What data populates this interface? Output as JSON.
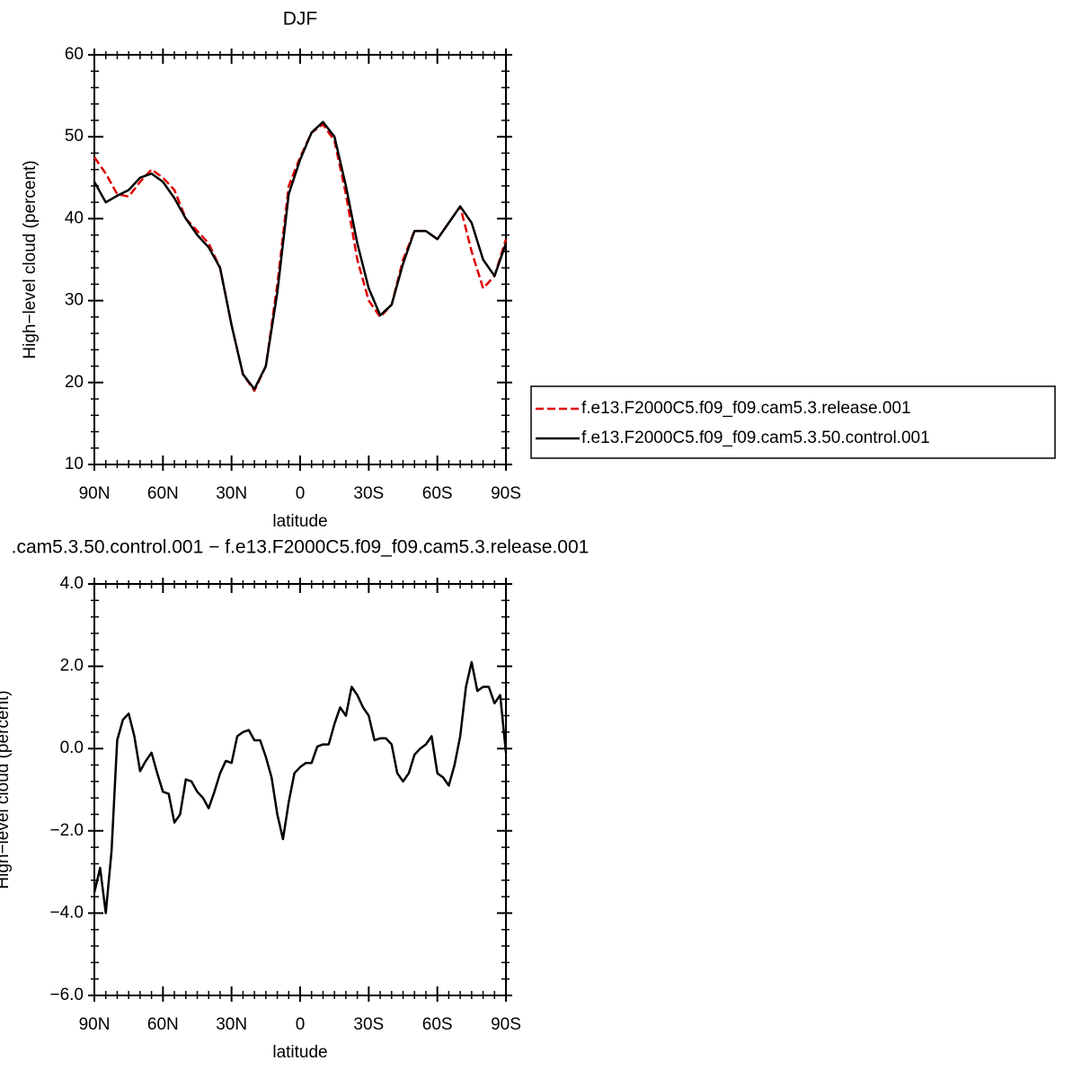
{
  "chart_data": [
    {
      "type": "line",
      "title": "DJF",
      "xlabel": "latitude",
      "ylabel": "High−level cloud (percent)",
      "xlim": [
        90,
        -90
      ],
      "xticks": [
        {
          "value": 90,
          "label": "90N"
        },
        {
          "value": 60,
          "label": "60N"
        },
        {
          "value": 30,
          "label": "30N"
        },
        0,
        {
          "value": -30,
          "label": "30S"
        },
        {
          "value": -60,
          "label": "60S"
        },
        {
          "value": -90,
          "label": "90S"
        }
      ],
      "ylim": [
        10,
        60
      ],
      "yticks": [
        10,
        20,
        30,
        40,
        50,
        60
      ],
      "legend": "right",
      "x": [
        90,
        85,
        80,
        75,
        70,
        65,
        60,
        55,
        50,
        45,
        40,
        35,
        30,
        25,
        20,
        15,
        10,
        5,
        0,
        -5,
        -10,
        -15,
        -20,
        -25,
        -30,
        -35,
        -40,
        -45,
        -50,
        -55,
        -60,
        -65,
        -70,
        -75,
        -80,
        -85,
        -90
      ],
      "series": [
        {
          "name": "f.e13.F2000C5.f09_f09.cam5.3.release.001",
          "color": "#e00000",
          "style": "dashed",
          "values": [
            47.5,
            45.5,
            43,
            42.7,
            44.5,
            46,
            45,
            43.5,
            40,
            38.5,
            37,
            34,
            27,
            21,
            19,
            22,
            32,
            44,
            47.5,
            50.5,
            51.5,
            49.5,
            43,
            35,
            30,
            28,
            29.5,
            35,
            38.5,
            38.5,
            37.5,
            39.5,
            41.5,
            36,
            31.5,
            33,
            37.5
          ]
        },
        {
          "name": "f.e13.F2000C5.f09_f09.cam5.3.50.control.001",
          "color": "#000000",
          "style": "solid",
          "values": [
            44.5,
            42,
            42.8,
            43.5,
            45,
            45.5,
            44.5,
            42.5,
            40,
            38,
            36.5,
            34,
            27,
            21,
            19.2,
            22,
            31,
            43,
            47.2,
            50.5,
            51.8,
            50,
            44,
            37,
            31.5,
            28.2,
            29.5,
            34.5,
            38.5,
            38.5,
            37.5,
            39.5,
            41.5,
            39.5,
            35,
            33,
            37
          ]
        }
      ]
    },
    {
      "type": "line",
      "title": ".cam5.3.50.control.001 − f.e13.F2000C5.f09_f09.cam5.3.release.001",
      "xlabel": "latitude",
      "ylabel": "High−level cloud (percent)",
      "xlim": [
        90,
        -90
      ],
      "xticks": [
        {
          "value": 90,
          "label": "90N"
        },
        {
          "value": 60,
          "label": "60N"
        },
        {
          "value": 30,
          "label": "30N"
        },
        0,
        {
          "value": -30,
          "label": "30S"
        },
        {
          "value": -60,
          "label": "60S"
        },
        {
          "value": -90,
          "label": "90S"
        }
      ],
      "ylim": [
        -6,
        4
      ],
      "yticks": [
        {
          "value": -6,
          "label": "−6.0"
        },
        {
          "value": -4,
          "label": "−4.0"
        },
        {
          "value": -2,
          "label": "−2.0"
        },
        {
          "value": 0,
          "label": "0.0"
        },
        {
          "value": 2,
          "label": "2.0"
        },
        {
          "value": 4,
          "label": "4.0"
        }
      ],
      "x": [
        90,
        87.5,
        85,
        82.5,
        80,
        77.5,
        75,
        72.5,
        70,
        67.5,
        65,
        62.5,
        60,
        57.5,
        55,
        52.5,
        50,
        47.5,
        45,
        42.5,
        40,
        37.5,
        35,
        32.5,
        30,
        27.5,
        25,
        22.5,
        20,
        17.5,
        15,
        12.5,
        10,
        7.5,
        5,
        2.5,
        0,
        -2.5,
        -5,
        -7.5,
        -10,
        -12.5,
        -15,
        -17.5,
        -20,
        -22.5,
        -25,
        -27.5,
        -30,
        -32.5,
        -35,
        -37.5,
        -40,
        -42.5,
        -45,
        -47.5,
        -50,
        -52.5,
        -55,
        -57.5,
        -60,
        -62.5,
        -65,
        -67.5,
        -70,
        -72.5,
        -75,
        -77.5,
        -80,
        -82.5,
        -85,
        -87.5,
        -90
      ],
      "series": [
        {
          "color": "#000000",
          "style": "solid",
          "values": [
            -3.5,
            -2.9,
            -4.0,
            -2.5,
            0.2,
            0.7,
            0.85,
            0.3,
            -0.55,
            -0.3,
            -0.1,
            -0.6,
            -1.05,
            -1.1,
            -1.8,
            -1.6,
            -0.75,
            -0.8,
            -1.05,
            -1.2,
            -1.45,
            -1.05,
            -0.6,
            -0.3,
            -0.35,
            0.3,
            0.4,
            0.45,
            0.2,
            0.2,
            -0.2,
            -0.7,
            -1.6,
            -2.2,
            -1.3,
            -0.6,
            -0.45,
            -0.35,
            -0.35,
            0.05,
            0.1,
            0.1,
            0.6,
            1.0,
            0.8,
            1.5,
            1.3,
            1.0,
            0.8,
            0.2,
            0.25,
            0.25,
            0.1,
            -0.6,
            -0.8,
            -0.6,
            -0.15,
            0.0,
            0.1,
            0.3,
            -0.6,
            -0.7,
            -0.9,
            -0.4,
            0.3,
            1.5,
            2.1,
            1.4,
            1.5,
            1.5,
            1.1,
            1.3,
            -0.1
          ]
        }
      ]
    }
  ]
}
